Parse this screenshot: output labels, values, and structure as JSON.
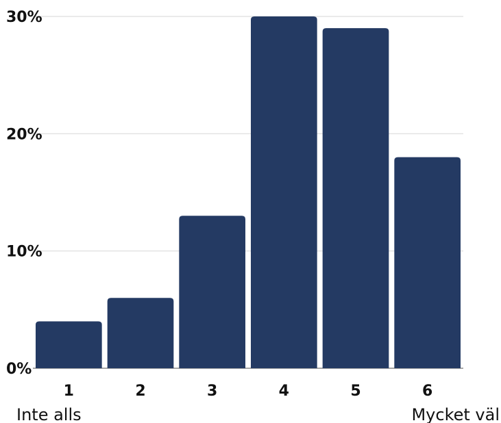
{
  "chart_data": {
    "type": "bar",
    "categories": [
      "1",
      "2",
      "3",
      "4",
      "5",
      "6"
    ],
    "values": [
      4,
      6,
      13,
      30,
      29,
      18
    ],
    "y_tick_labels": [
      "0%",
      "10%",
      "20%",
      "30%"
    ],
    "y_ticks": [
      0,
      10,
      20,
      30
    ],
    "ylim": [
      0,
      30
    ],
    "grid": true,
    "scale_labels": {
      "low": "Inte alls",
      "high": "Mycket väl"
    },
    "colors": {
      "bar": "#243a63",
      "grid": "#e3e3e3",
      "axis": "#8a8a8a"
    }
  }
}
